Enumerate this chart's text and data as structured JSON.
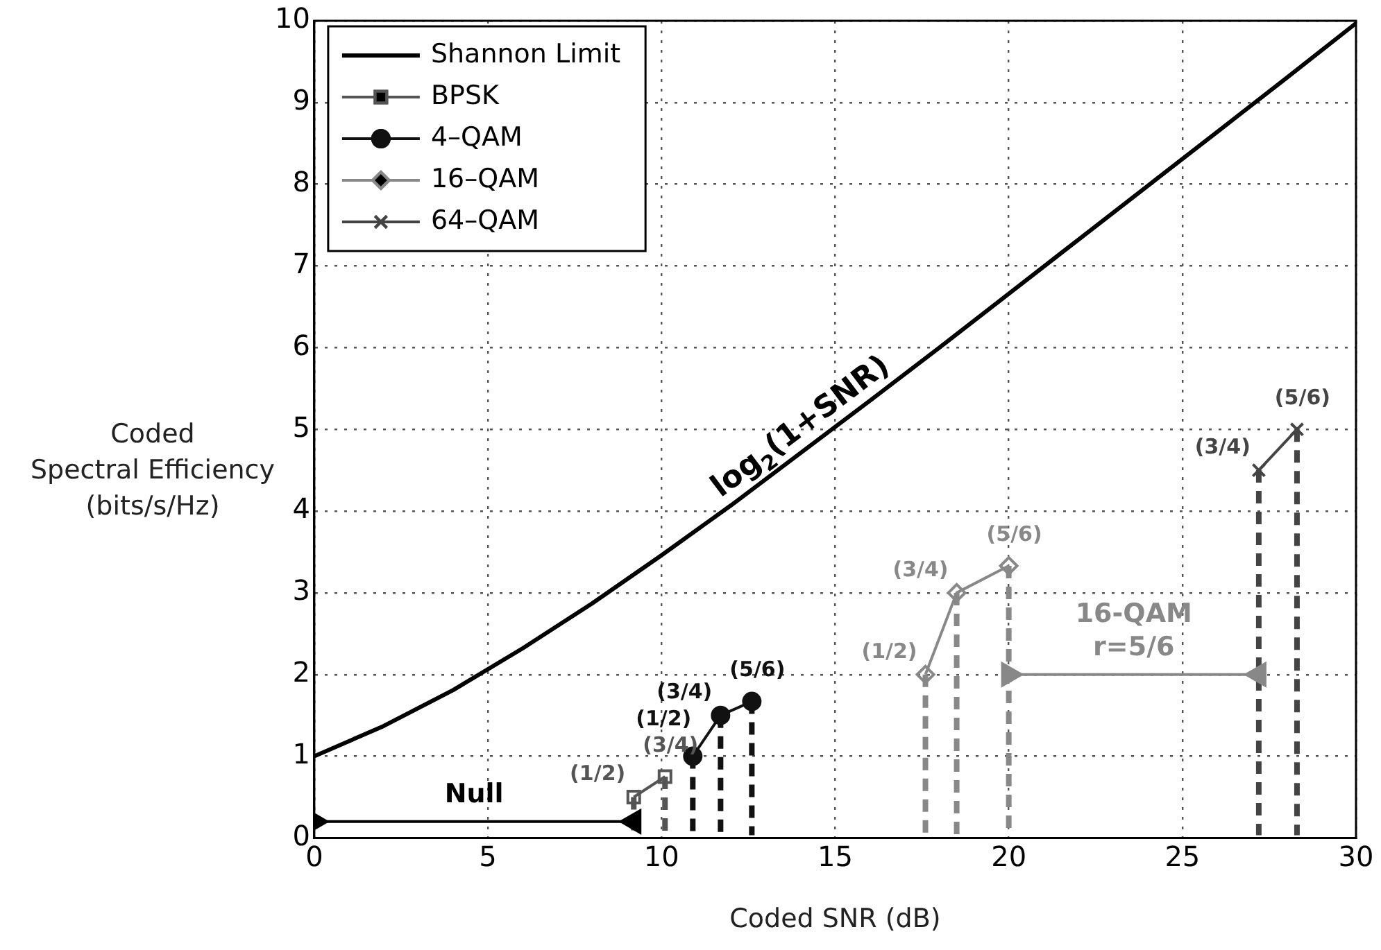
{
  "chart_data": {
    "type": "line",
    "xlabel": "Coded SNR (dB)",
    "ylabel": "Coded\nSpectral Efficiency\n(bits/s/Hz)",
    "xlim": [
      0,
      30
    ],
    "xticks": [
      0,
      5,
      10,
      15,
      20,
      25,
      30
    ],
    "ylim": [
      0,
      10
    ],
    "yticks": [
      0,
      1,
      2,
      3,
      4,
      5,
      6,
      7,
      8,
      9,
      10
    ],
    "grid": true,
    "legend": "top left",
    "line_style": "solid",
    "series": [
      {
        "name": "Shannon Limit",
        "color": "#000000",
        "marker": "none",
        "x": [
          0,
          2,
          4,
          6,
          8,
          10,
          12,
          14,
          16,
          18,
          20,
          22,
          24,
          26,
          28,
          30
        ],
        "values": [
          1.0,
          1.37,
          1.81,
          2.32,
          2.87,
          3.46,
          4.07,
          4.71,
          5.35,
          6.0,
          6.66,
          7.32,
          7.98,
          8.64,
          9.3,
          9.97
        ]
      },
      {
        "name": "BPSK",
        "color": "#555555",
        "marker": "square",
        "x": [
          9.2,
          10.1
        ],
        "values": [
          0.5,
          0.75
        ],
        "errors": [
          [
            0,
            0.5
          ],
          [
            0,
            0.75
          ]
        ],
        "value_labels": [
          "(1/2)",
          "(3/4)"
        ]
      },
      {
        "name": "4–QAM",
        "color": "#111111",
        "marker": "circle",
        "x": [
          10.9,
          11.7,
          12.6
        ],
        "values": [
          1.0,
          1.5,
          1.67
        ],
        "errors": [
          [
            0,
            1.0
          ],
          [
            0,
            1.5
          ],
          [
            0,
            1.67
          ]
        ],
        "value_labels": [
          "(1/2)",
          "(3/4)",
          "(5/6)"
        ]
      },
      {
        "name": "16–QAM",
        "color": "#888888",
        "marker": "diamond",
        "x": [
          17.6,
          18.5,
          20.0
        ],
        "values": [
          2.0,
          3.0,
          3.33
        ],
        "errors": [
          [
            0,
            2.0
          ],
          [
            0,
            3.0
          ],
          [
            0,
            3.33
          ]
        ],
        "value_labels": [
          "(1/2)",
          "(3/4)",
          "(5/6)"
        ]
      },
      {
        "name": "64–QAM",
        "color": "#444444",
        "marker": "cross",
        "x": [
          27.2,
          28.3
        ],
        "values": [
          4.5,
          5.0
        ],
        "errors": [
          [
            0,
            4.5
          ],
          [
            0,
            5.0
          ]
        ],
        "value_labels": [
          "(3/4)",
          "(5/6)"
        ]
      },
      {
        "color": "#000000",
        "marker": "triangle",
        "x": [
          0,
          9.2
        ],
        "values": [
          0.2,
          0.2
        ]
      },
      {
        "color": "#888888",
        "marker": "triangle",
        "x": [
          20,
          27.2
        ],
        "values": [
          2.0,
          2.0
        ]
      }
    ],
    "annotations": [
      "log$_{2}$(1+SNR)",
      "Null",
      "16-QAM r=5/6"
    ]
  }
}
